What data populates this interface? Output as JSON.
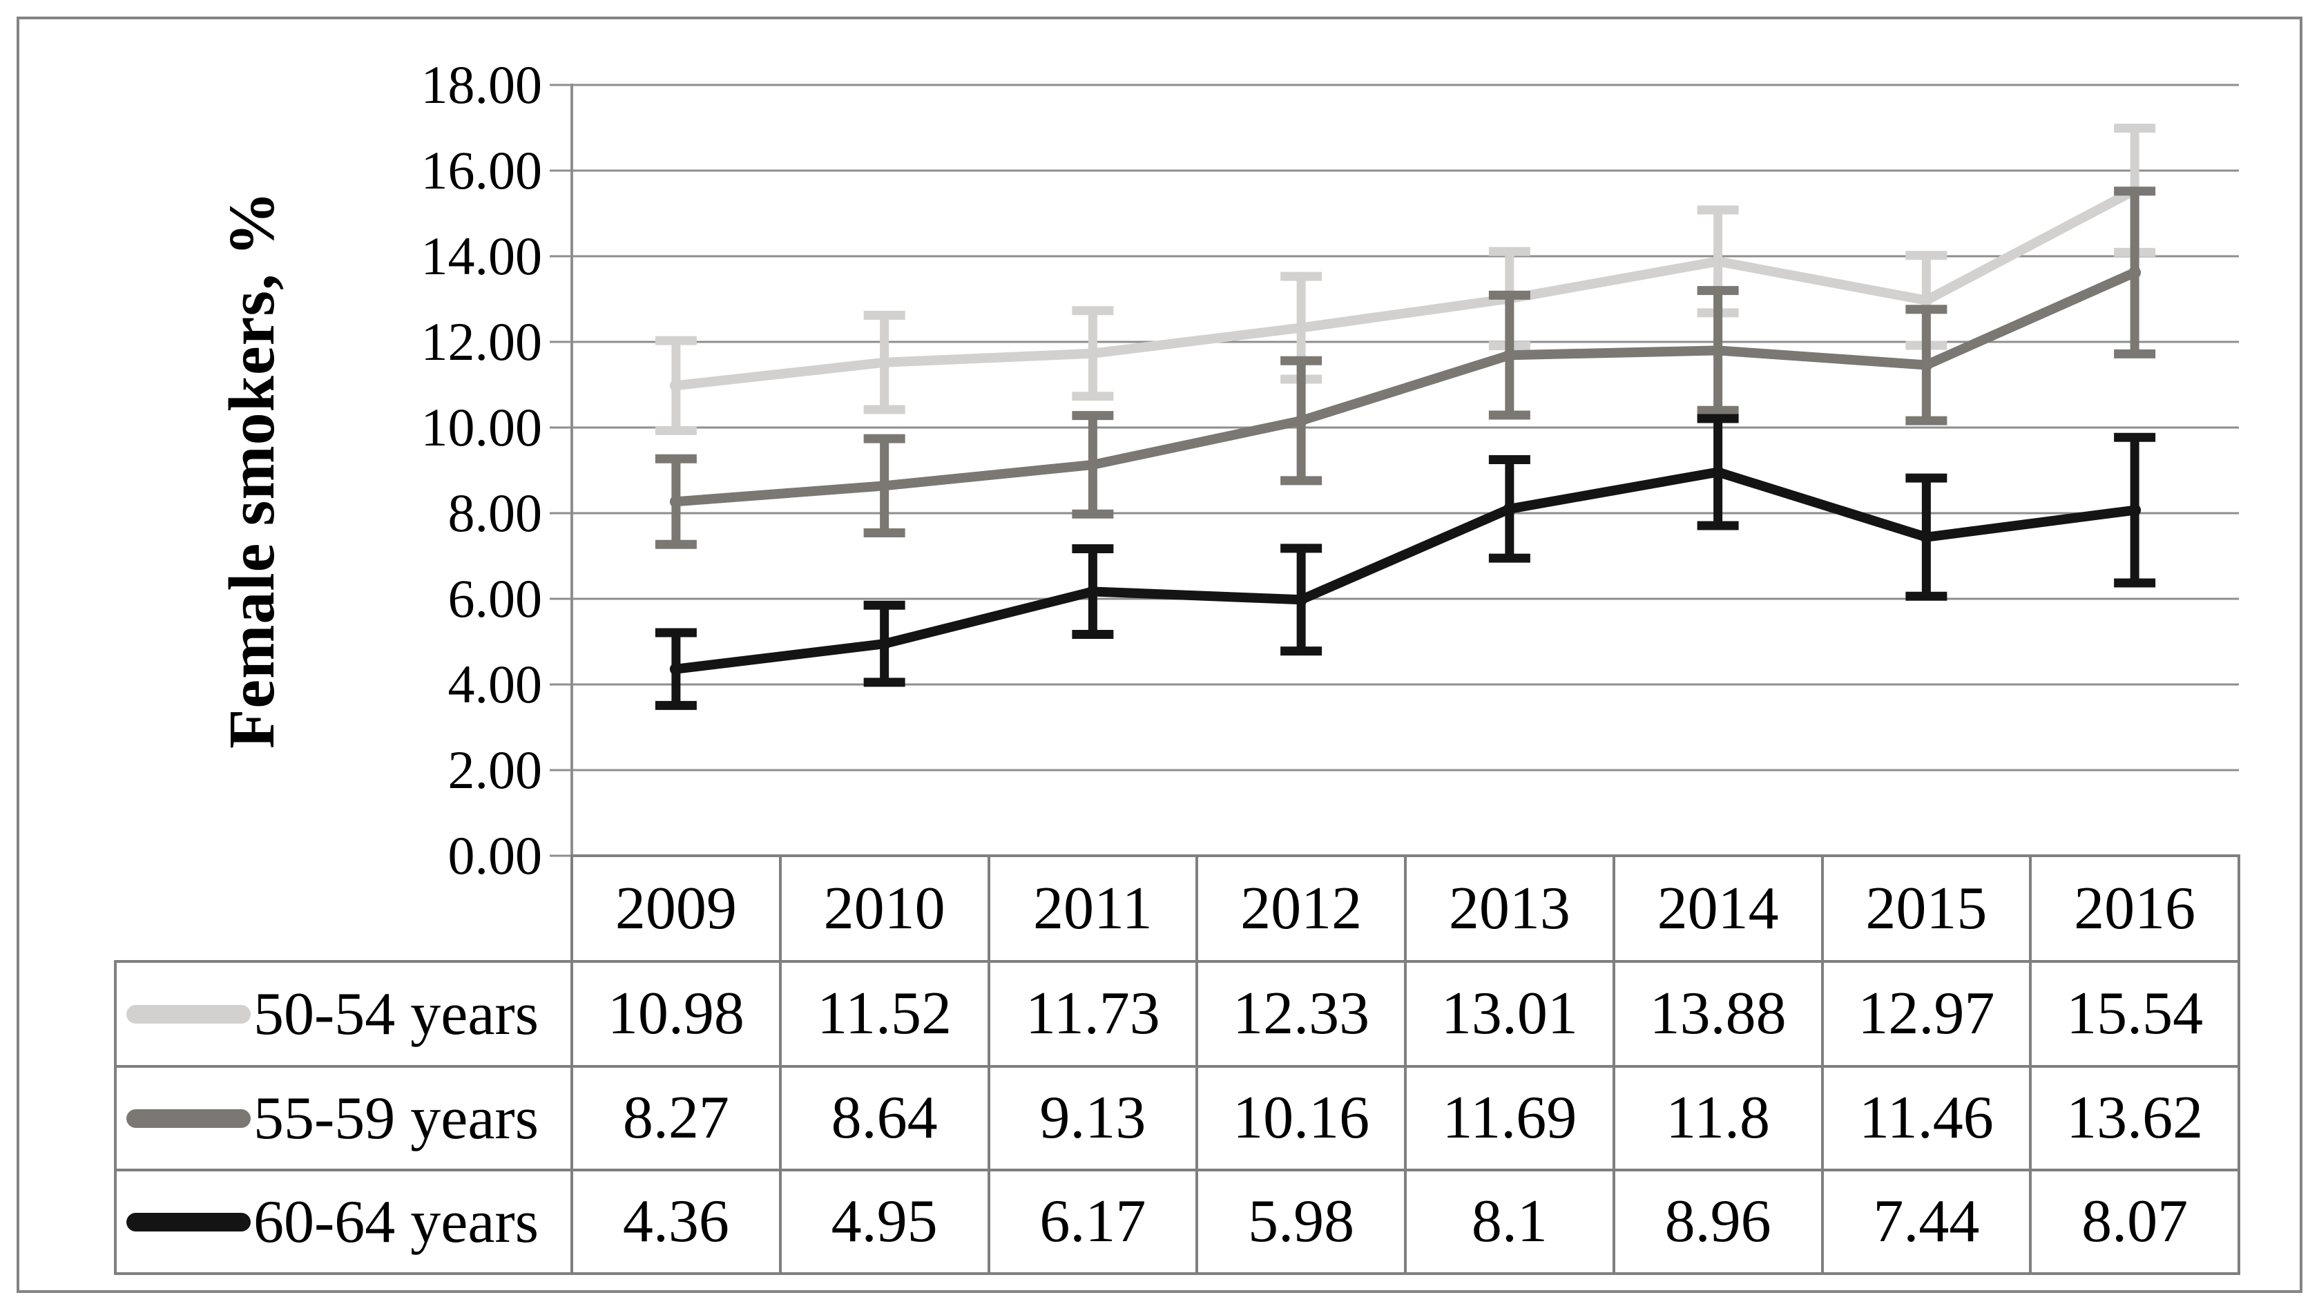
{
  "figure": {
    "border_color": "#848484",
    "background": "#ffffff"
  },
  "y_axis": {
    "title": "Female smokers, %",
    "tick_labels": [
      "18.00",
      "16.00",
      "14.00",
      "12.00",
      "10.00",
      "8.00",
      "6.00",
      "4.00",
      "2.00",
      "0.00"
    ]
  },
  "chart_data": {
    "type": "line",
    "title": "",
    "xlabel": "",
    "ylabel": "Female smokers, %",
    "ylim": [
      0,
      18
    ],
    "ytick_step": 2,
    "grid": true,
    "error_bars": true,
    "legend_position": "left-of-data-table",
    "categories": [
      "2009",
      "2010",
      "2011",
      "2012",
      "2013",
      "2014",
      "2015",
      "2016"
    ],
    "series": [
      {
        "name": "50-54 years",
        "color": "#d2d1cf",
        "values": [
          10.98,
          11.52,
          11.73,
          12.33,
          13.01,
          13.88,
          12.97,
          15.54
        ],
        "display_values": [
          "10.98",
          "11.52",
          "11.73",
          "12.33",
          "13.01",
          "13.88",
          "12.97",
          "15.54"
        ],
        "errors_est": [
          1.05,
          1.1,
          1.0,
          1.2,
          1.1,
          1.2,
          1.05,
          1.45
        ]
      },
      {
        "name": "55-59 years",
        "color": "#7b7772",
        "values": [
          8.27,
          8.64,
          9.13,
          10.16,
          11.69,
          11.8,
          11.46,
          13.62
        ],
        "display_values": [
          "8.27",
          "8.64",
          "9.13",
          "10.16",
          "11.69",
          "11.8",
          "11.46",
          "13.62"
        ],
        "errors_est": [
          1.0,
          1.1,
          1.15,
          1.4,
          1.4,
          1.4,
          1.3,
          1.9
        ]
      },
      {
        "name": "60-64 years",
        "color": "#141414",
        "values": [
          4.36,
          4.95,
          6.17,
          5.98,
          8.1,
          8.96,
          7.44,
          8.07
        ],
        "display_values": [
          "4.36",
          "4.95",
          "6.17",
          "5.98",
          "8.1",
          "8.96",
          "7.44",
          "8.07"
        ],
        "errors_est": [
          0.85,
          0.9,
          1.0,
          1.2,
          1.15,
          1.25,
          1.38,
          1.7
        ]
      }
    ],
    "colors": {
      "gridline": "#8e8e8e",
      "axis": "#8e8e8e",
      "table_border": "#7f7f7f",
      "text": "#000000"
    }
  }
}
